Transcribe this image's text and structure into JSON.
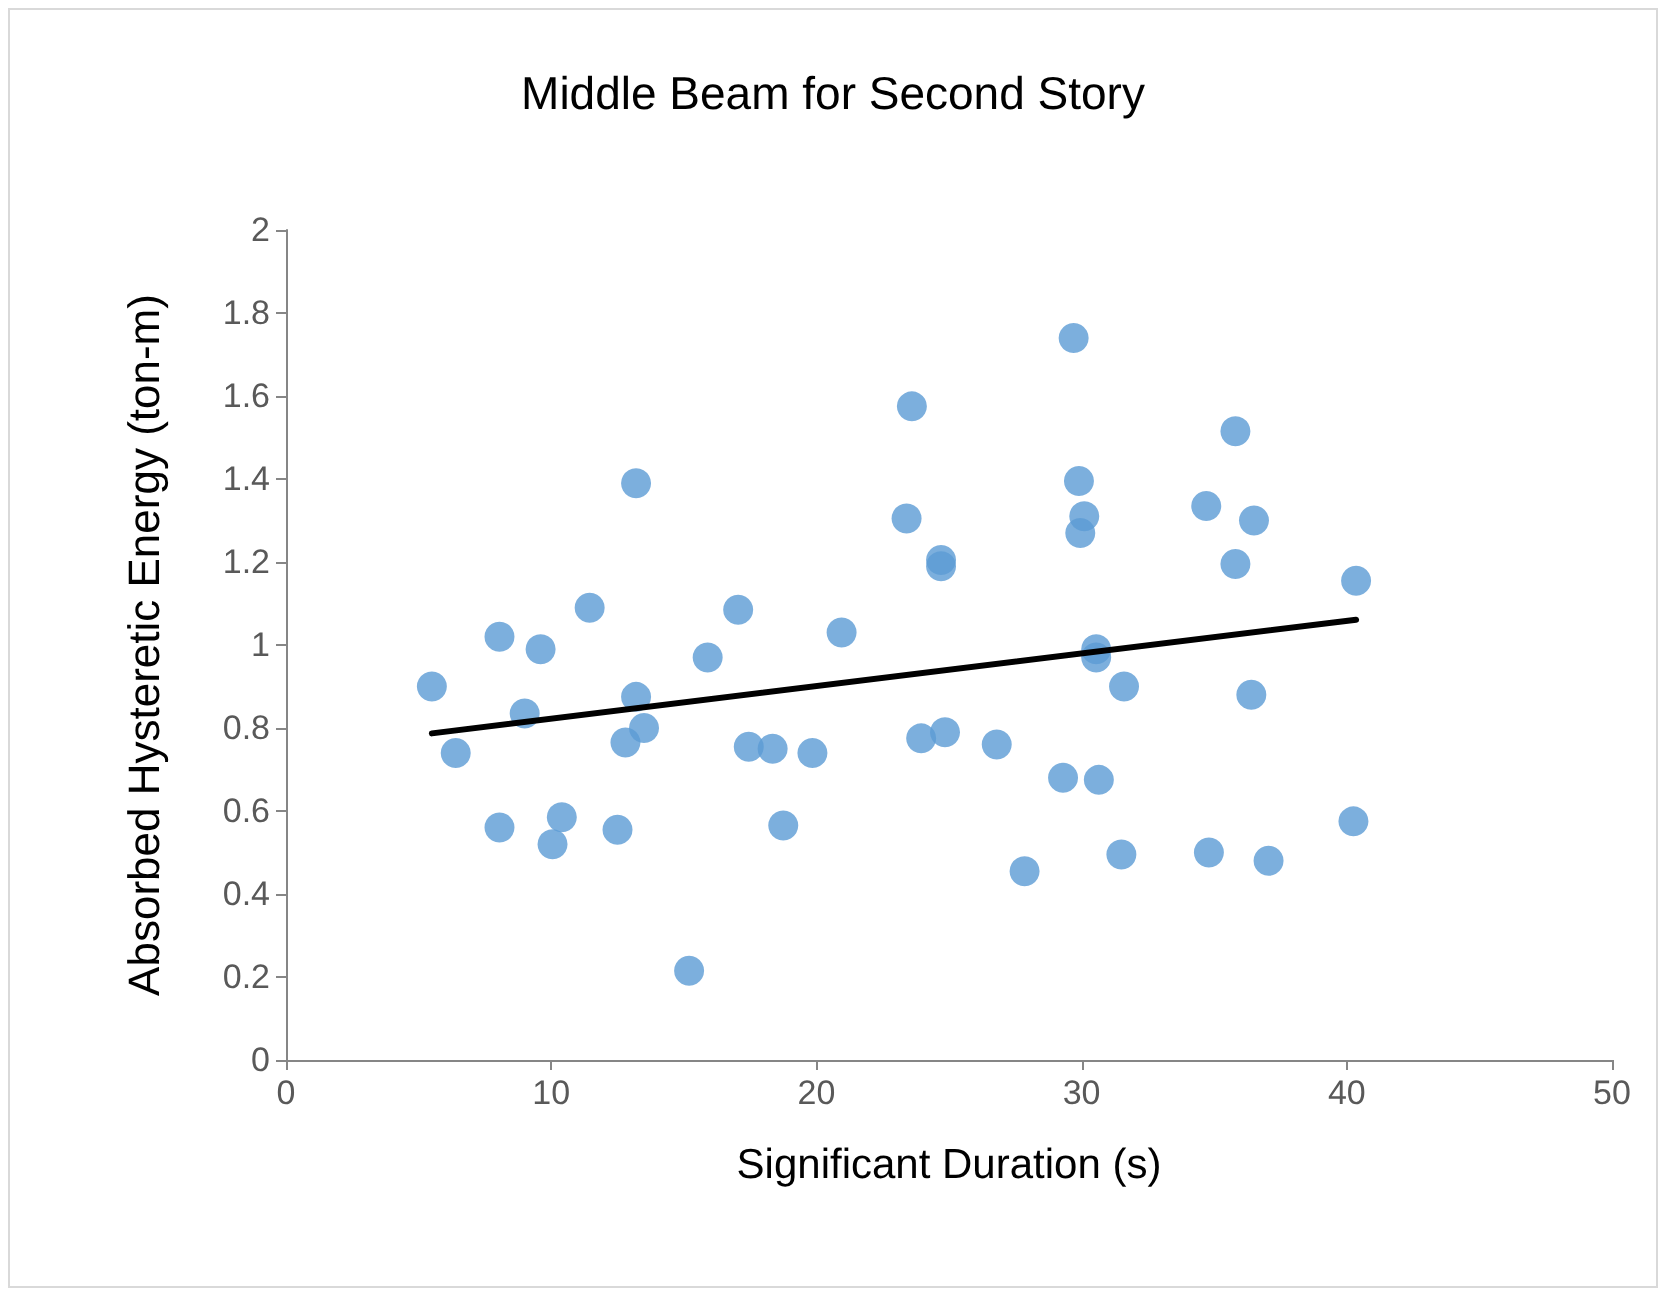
{
  "chart_data": {
    "type": "scatter",
    "title": "Middle Beam for Second Story",
    "xlabel": "Significant Duration (s)",
    "ylabel": "Absorbed Hysteretic Energy (ton-m)",
    "series": [
      {
        "marker": "circle",
        "color": "#5b9bd5",
        "x": [
          5.5,
          6.4,
          8.05,
          8.05,
          9.0,
          9.6,
          10.05,
          10.4,
          11.45,
          12.5,
          12.8,
          13.2,
          13.2,
          13.5,
          15.2,
          15.9,
          17.05,
          17.45,
          18.35,
          18.75,
          19.85,
          20.95,
          23.4,
          23.6,
          23.95,
          24.7,
          24.7,
          24.85,
          26.8,
          27.85,
          29.3,
          29.7,
          29.9,
          29.95,
          30.1,
          30.55,
          30.55,
          30.65,
          31.5,
          31.6,
          34.7,
          34.8,
          35.8,
          35.8,
          36.4,
          36.5,
          37.05,
          40.25,
          40.35
        ],
        "values": [
          0.9,
          0.74,
          1.02,
          0.56,
          0.835,
          0.99,
          0.52,
          0.585,
          1.09,
          0.555,
          0.765,
          1.39,
          0.875,
          0.8,
          0.215,
          0.97,
          1.085,
          0.755,
          0.75,
          0.565,
          0.74,
          1.03,
          1.305,
          1.575,
          0.775,
          1.205,
          1.19,
          0.79,
          0.76,
          0.455,
          0.68,
          1.74,
          1.395,
          1.27,
          1.31,
          0.99,
          0.97,
          0.675,
          0.495,
          0.9,
          1.335,
          0.5,
          1.515,
          1.195,
          0.88,
          1.3,
          0.48,
          0.575,
          1.155
        ]
      },
      {
        "type": "line",
        "marker": "none",
        "line_style": "solid",
        "color": "#000000",
        "x": [
          5.5,
          40.35
        ],
        "values": [
          0.787,
          1.061
        ]
      }
    ],
    "xlim": [
      0,
      50
    ],
    "xticks": [
      0,
      10,
      20,
      30,
      40,
      50
    ],
    "ylim": [
      0,
      2
    ],
    "yticks": [
      0,
      0.2,
      0.4,
      0.6,
      0.8,
      1,
      1.2,
      1.4,
      1.6,
      1.8,
      2
    ],
    "grid": false
  }
}
